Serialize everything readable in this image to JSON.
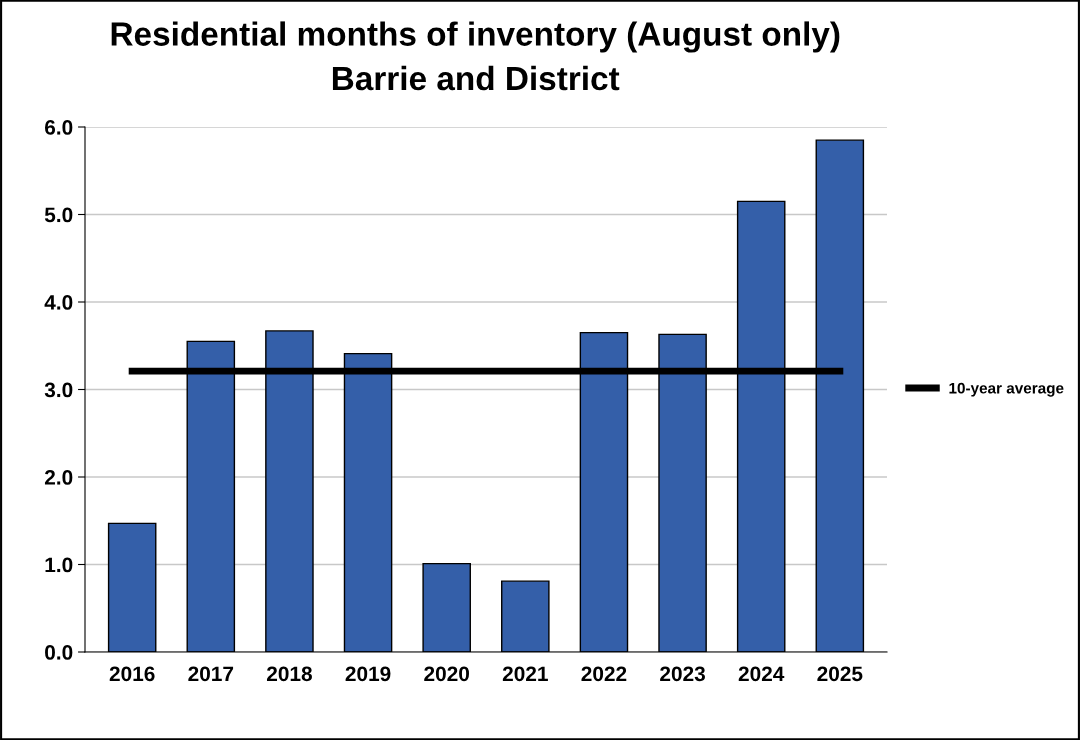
{
  "chart_data": {
    "type": "bar",
    "title": "Residential months of inventory (August only)",
    "subtitle": "Barrie and District",
    "categories": [
      "2016",
      "2017",
      "2018",
      "2019",
      "2020",
      "2021",
      "2022",
      "2023",
      "2024",
      "2025"
    ],
    "series": [
      {
        "color": "#345fa9",
        "values": [
          1.47,
          3.55,
          3.67,
          3.41,
          1.01,
          0.81,
          3.65,
          3.63,
          5.15,
          5.85
        ]
      },
      {
        "type": "line",
        "name": "10-year average",
        "color": "#000000",
        "values": [
          3.21,
          3.21,
          3.21,
          3.21,
          3.21,
          3.21,
          3.21,
          3.21,
          3.21,
          3.21
        ]
      }
    ],
    "ylim": [
      0,
      6
    ],
    "yticks": [
      {
        "value": 0,
        "label": "0.0"
      },
      {
        "value": 1,
        "label": "1.0"
      },
      {
        "value": 2,
        "label": "2.0"
      },
      {
        "value": 3,
        "label": "3.0"
      },
      {
        "value": 4,
        "label": "4.0"
      },
      {
        "value": 5,
        "label": "5.0"
      },
      {
        "value": 6,
        "label": "6.0"
      }
    ],
    "grid": "y",
    "legend": "right"
  }
}
